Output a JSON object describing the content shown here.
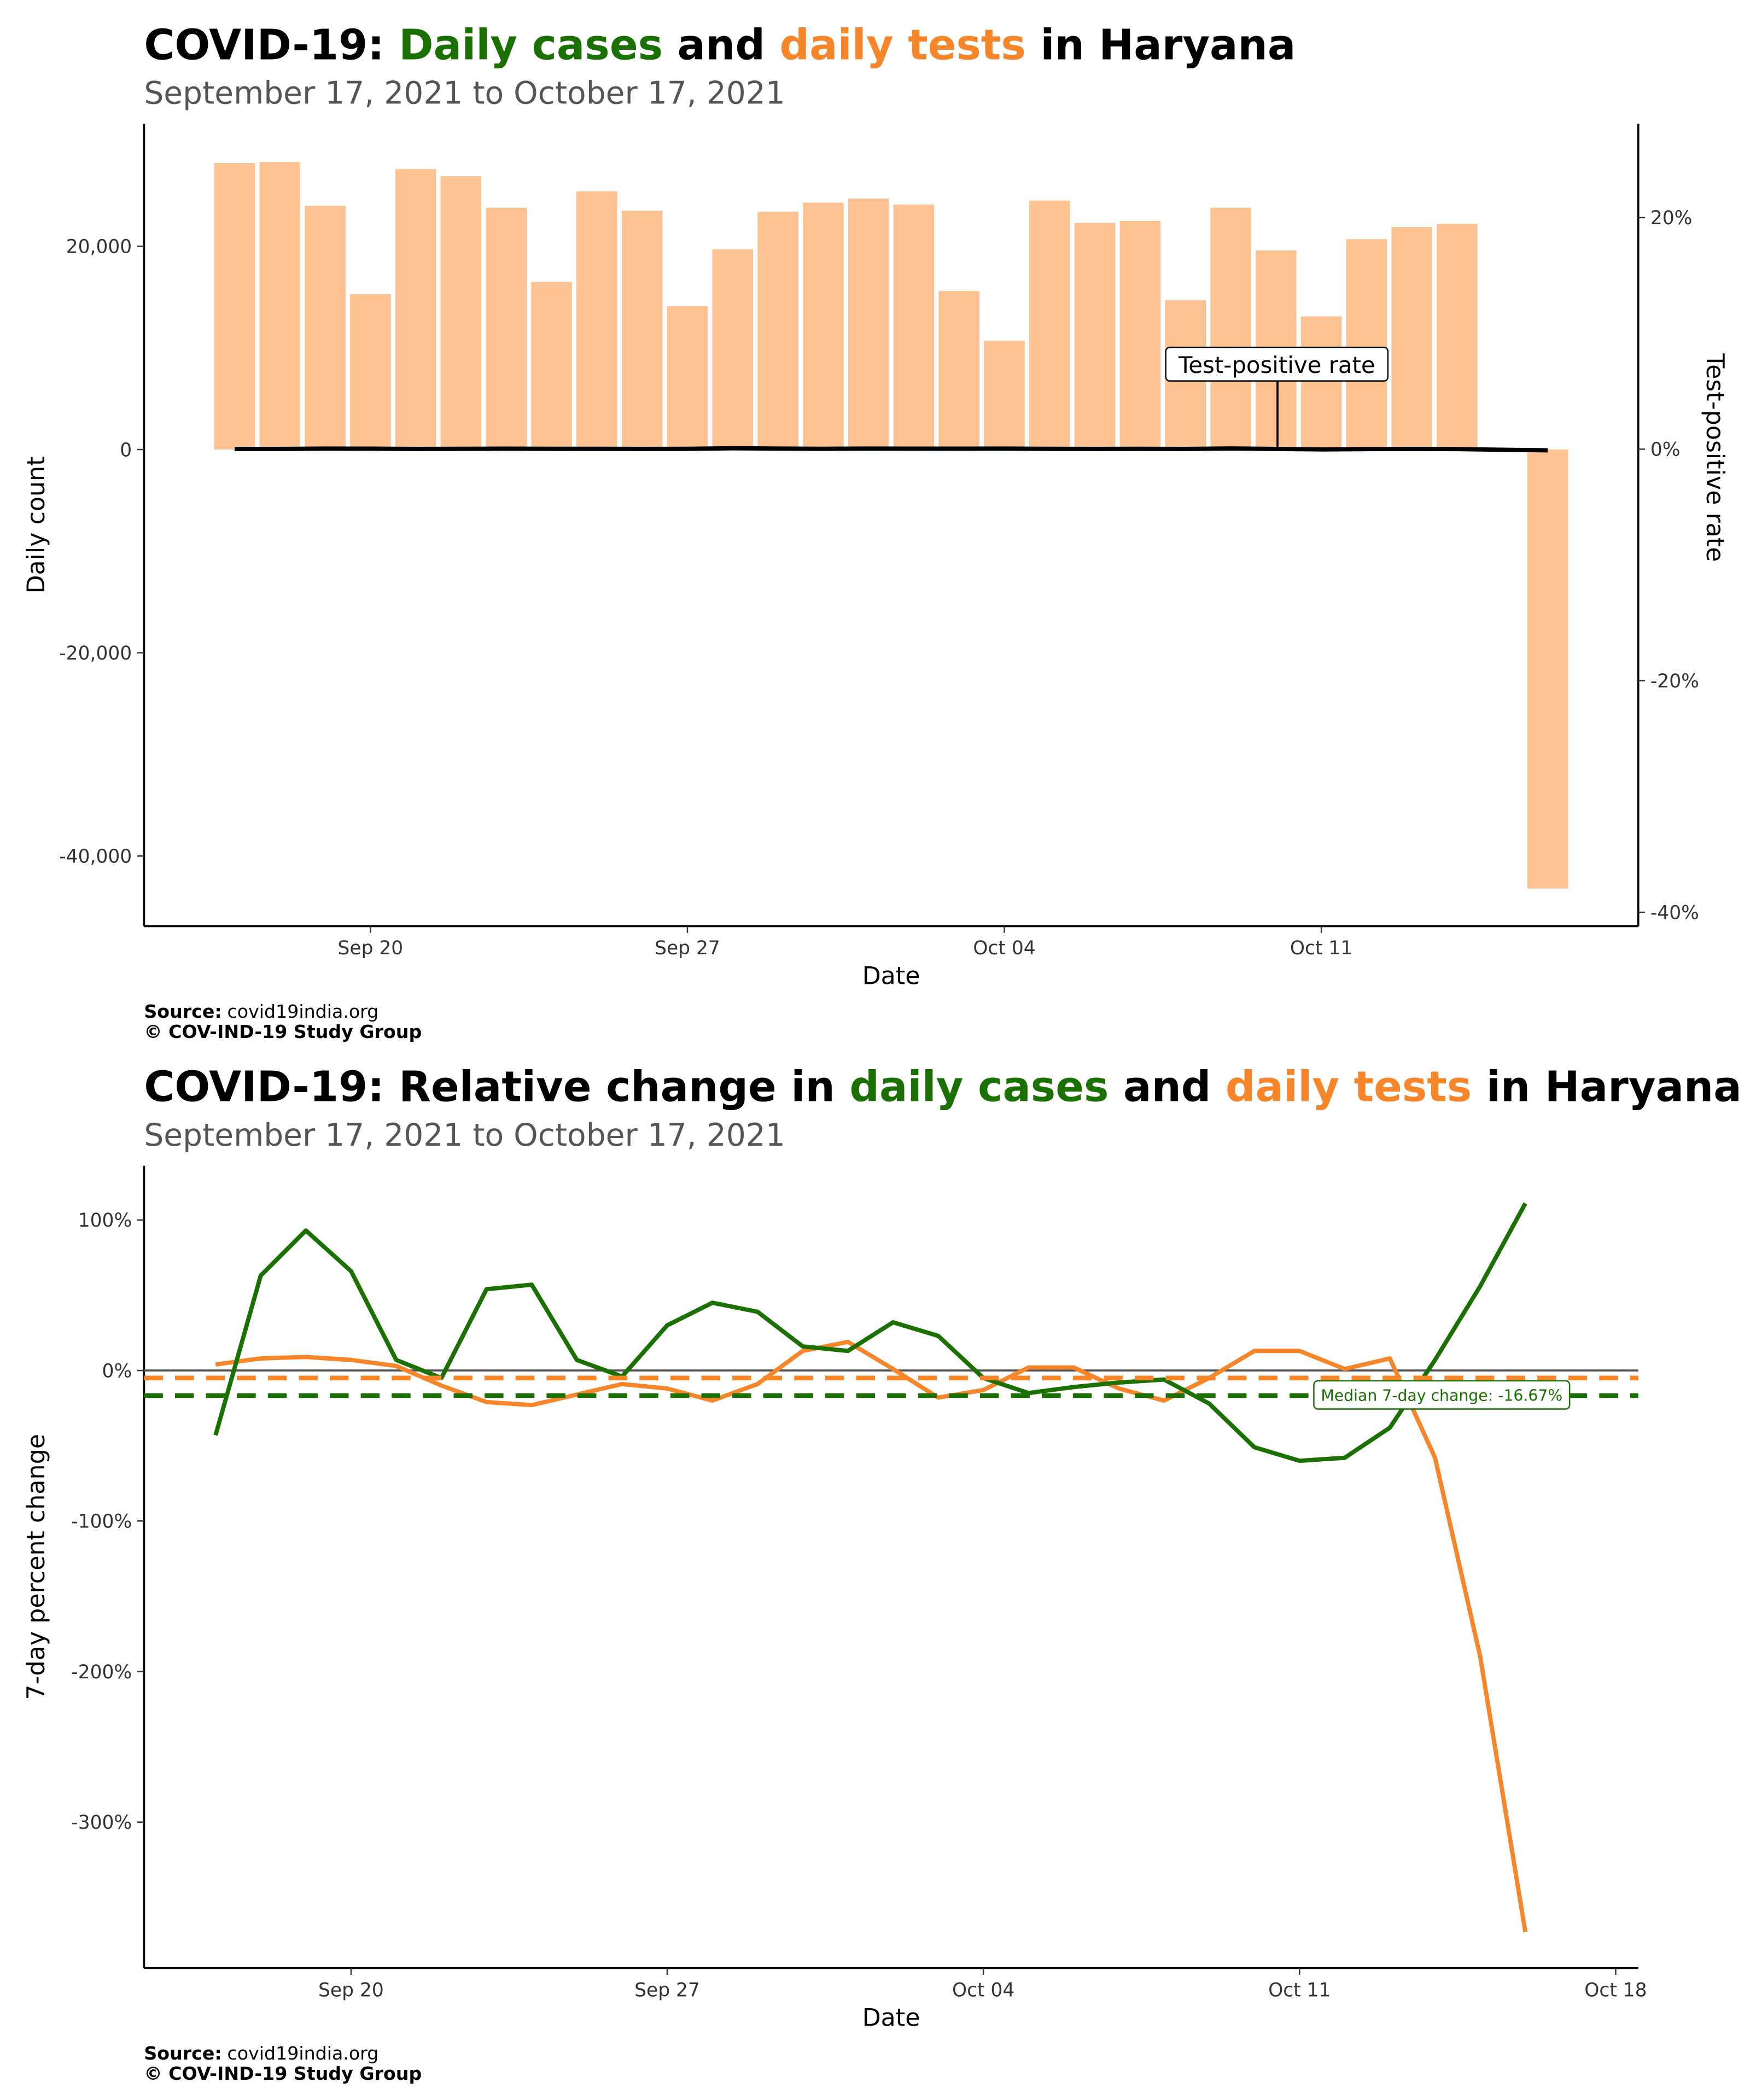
{
  "chart_data": [
    {
      "type": "bar",
      "title_parts": [
        {
          "text": "COVID-19: ",
          "color": "#000000"
        },
        {
          "text": "Daily cases",
          "color": "#1a7000"
        },
        {
          "text": " and ",
          "color": "#000000"
        },
        {
          "text": "daily tests",
          "color": "#f7862a"
        },
        {
          "text": " in Haryana",
          "color": "#000000"
        }
      ],
      "subtitle": "September 17, 2021 to October 17, 2021",
      "xlabel": "Date",
      "ylabel": "Daily count",
      "y2label": "Test-positive rate",
      "x": [
        "2021-09-17",
        "2021-09-18",
        "2021-09-19",
        "2021-09-20",
        "2021-09-21",
        "2021-09-22",
        "2021-09-23",
        "2021-09-24",
        "2021-09-25",
        "2021-09-26",
        "2021-09-27",
        "2021-09-28",
        "2021-09-29",
        "2021-09-30",
        "2021-10-01",
        "2021-10-02",
        "2021-10-03",
        "2021-10-04",
        "2021-10-05",
        "2021-10-06",
        "2021-10-07",
        "2021-10-08",
        "2021-10-09",
        "2021-10-10",
        "2021-10-11",
        "2021-10-12",
        "2021-10-13",
        "2021-10-14",
        "2021-10-15",
        "2021-10-16"
      ],
      "series": [
        {
          "name": "Daily tests",
          "color": "#fdc291",
          "values": [
            28200,
            28300,
            24000,
            15300,
            27600,
            26900,
            23800,
            16500,
            25400,
            23500,
            14100,
            19700,
            23400,
            24300,
            24700,
            24100,
            15600,
            10700,
            24500,
            22300,
            22500,
            14700,
            23800,
            19600,
            13100,
            20700,
            21900,
            22200,
            null,
            -43200
          ]
        },
        {
          "name": "Test-positive rate",
          "type": "line",
          "axis": "y2",
          "color": "#000000",
          "values": [
            0.02,
            0.02,
            0.05,
            0.04,
            0.02,
            0.03,
            0.04,
            0.03,
            0.03,
            0.02,
            0.03,
            0.08,
            0.05,
            0.03,
            0.05,
            0.04,
            0.04,
            0.05,
            0.03,
            0.02,
            0.03,
            0.02,
            0.06,
            0.02,
            -0.02,
            0.01,
            0.02,
            0.01,
            -0.05,
            -0.1
          ]
        }
      ],
      "xlim": [
        "2021-09-15",
        "2021-10-18"
      ],
      "xticks": [
        {
          "value": "2021-09-20",
          "label": "Sep 20"
        },
        {
          "value": "2021-09-27",
          "label": "Sep 27"
        },
        {
          "value": "2021-10-04",
          "label": "Oct 04"
        },
        {
          "value": "2021-10-11",
          "label": "Oct 11"
        }
      ],
      "ylim": [
        -46900,
        32050
      ],
      "yticks": [
        {
          "value": -40000,
          "label": "-40,000"
        },
        {
          "value": -20000,
          "label": "-20,000"
        },
        0,
        {
          "value": 20000,
          "label": "20,000"
        }
      ],
      "y2lim": [
        -41.2,
        28.1
      ],
      "y2ticks": [
        {
          "value": -40,
          "label": "-40%"
        },
        {
          "value": -20,
          "label": "-20%"
        },
        {
          "value": 0,
          "label": "0%"
        },
        {
          "value": 20,
          "label": "20%"
        }
      ],
      "source_label": "Source:",
      "source": "covid19india.org",
      "credit": "© COV-IND-19 Study Group"
    },
    {
      "type": "line",
      "title_parts": [
        {
          "text": "COVID-19: Relative change in ",
          "color": "#000000"
        },
        {
          "text": "daily cases",
          "color": "#1a7000"
        },
        {
          "text": " and ",
          "color": "#000000"
        },
        {
          "text": "daily tests",
          "color": "#f7862a"
        },
        {
          "text": " in Haryana",
          "color": "#000000"
        }
      ],
      "subtitle": "September 17, 2021 to October 17, 2021",
      "xlabel": "Date",
      "ylabel": "7-day percent change",
      "x": [
        "2021-09-17",
        "2021-09-18",
        "2021-09-19",
        "2021-09-20",
        "2021-09-21",
        "2021-09-22",
        "2021-09-23",
        "2021-09-24",
        "2021-09-25",
        "2021-09-26",
        "2021-09-27",
        "2021-09-28",
        "2021-09-29",
        "2021-09-30",
        "2021-10-01",
        "2021-10-02",
        "2021-10-03",
        "2021-10-04",
        "2021-10-05",
        "2021-10-06",
        "2021-10-07",
        "2021-10-08",
        "2021-10-09",
        "2021-10-10",
        "2021-10-11",
        "2021-10-12",
        "2021-10-13",
        "2021-10-14",
        "2021-10-15",
        "2021-10-16"
      ],
      "series": [
        {
          "name": "Daily tests",
          "color": "#f7862a",
          "median": -5,
          "values": [
            4,
            8,
            9,
            7,
            3,
            -10,
            -21,
            -23,
            -16,
            -9,
            -12,
            -20,
            -9,
            13,
            19,
            1,
            -18,
            -13,
            2,
            2,
            -12,
            -20,
            -5,
            13,
            13,
            1,
            8,
            -58,
            -190,
            -373
          ]
        },
        {
          "name": "Daily cases",
          "color": "#1a7000",
          "median": -16.67,
          "values": [
            -43,
            63,
            93,
            66,
            7,
            -5,
            54,
            57,
            7,
            -4,
            30,
            45,
            39,
            16,
            13,
            32,
            23,
            -5,
            -15,
            -11,
            -8,
            -6,
            -22,
            -51,
            -60,
            -58,
            -38,
            7,
            56,
            111
          ]
        }
      ],
      "median_label": "Median 7-day change: -16.67%",
      "zero_line": true,
      "xlim": [
        "2021-09-15T10",
        "2021-10-18T12"
      ],
      "xticks": [
        {
          "value": "2021-09-20",
          "label": "Sep 20"
        },
        {
          "value": "2021-09-27",
          "label": "Sep 27"
        },
        {
          "value": "2021-10-04",
          "label": "Oct 04"
        },
        {
          "value": "2021-10-11",
          "label": "Oct 11"
        },
        {
          "value": "2021-10-18",
          "label": "Oct 18"
        }
      ],
      "ylim": [
        -397,
        136
      ],
      "yticks": [
        {
          "value": -300,
          "label": "-300%"
        },
        {
          "value": -200,
          "label": "-200%"
        },
        {
          "value": -100,
          "label": "-100%"
        },
        {
          "value": 0,
          "label": "0%"
        },
        {
          "value": 100,
          "label": "100%"
        }
      ],
      "source_label": "Source:",
      "source": "covid19india.org",
      "credit": "© COV-IND-19 Study Group"
    }
  ]
}
